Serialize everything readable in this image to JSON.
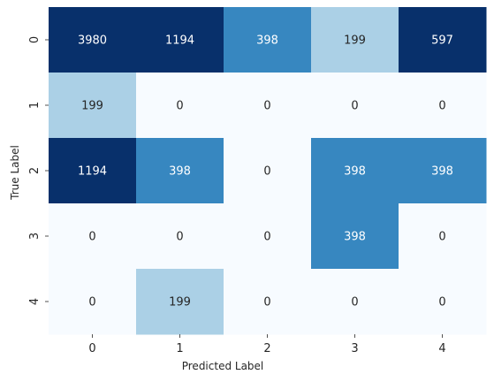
{
  "chart_data": {
    "type": "heatmap",
    "title": "",
    "xlabel": "Predicted Label",
    "ylabel": "True Label",
    "x_categories": [
      "0",
      "1",
      "2",
      "3",
      "4"
    ],
    "y_categories": [
      "0",
      "1",
      "2",
      "3",
      "4"
    ],
    "values": [
      [
        3980,
        1194,
        398,
        199,
        597
      ],
      [
        199,
        0,
        0,
        0,
        0
      ],
      [
        1194,
        398,
        0,
        398,
        398
      ],
      [
        0,
        0,
        0,
        398,
        0
      ],
      [
        0,
        199,
        0,
        0,
        0
      ]
    ],
    "colormap": "Blues",
    "colorbar": false,
    "annotations": true,
    "colors": {
      "low": "#f7fbff",
      "text_dark": "#262626",
      "text_light": "#ffffff"
    }
  }
}
